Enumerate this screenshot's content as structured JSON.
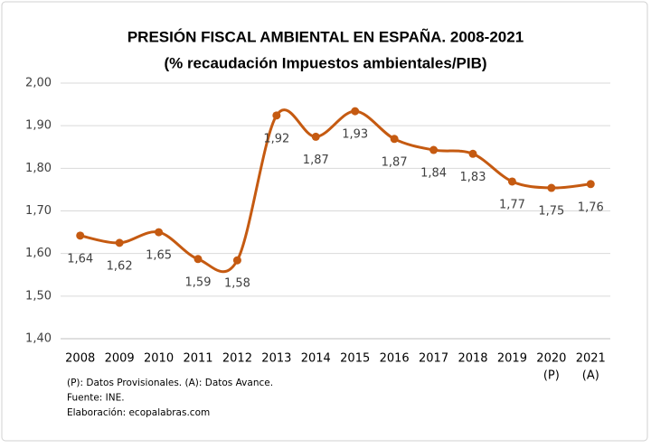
{
  "chart_data": {
    "type": "line",
    "title": "PRESIÓN FISCAL AMBIENTAL EN ESPAÑA. 2008-2021",
    "subtitle": "(% recaudación Impuestos ambientales/PIB)",
    "categories": [
      "2008",
      "2009",
      "2010",
      "2011",
      "2012",
      "2013",
      "2014",
      "2015",
      "2016",
      "2017",
      "2018",
      "2019",
      "2020",
      "2021"
    ],
    "category_notes": [
      null,
      null,
      null,
      null,
      null,
      null,
      null,
      null,
      null,
      null,
      null,
      null,
      "(P)",
      "(A)"
    ],
    "series": [
      {
        "name": "Presión fiscal ambiental",
        "color": "#c55a11",
        "values": [
          1.642,
          1.625,
          1.65,
          1.587,
          1.584,
          1.924,
          1.874,
          1.934,
          1.869,
          1.843,
          1.834,
          1.769,
          1.754,
          1.763
        ],
        "value_labels": [
          "1,64",
          "1,62",
          "1,65",
          "1,59",
          "1,58",
          "1,92",
          "1,87",
          "1,93",
          "1,87",
          "1,84",
          "1,83",
          "1,77",
          "1,75",
          "1,76"
        ]
      }
    ],
    "ylim": [
      1.4,
      2.0
    ],
    "yticks": [
      {
        "value": 1.4,
        "label": "1,40"
      },
      {
        "value": 1.5,
        "label": "1,50"
      },
      {
        "value": 1.6,
        "label": "1,60"
      },
      {
        "value": 1.7,
        "label": "1,70"
      },
      {
        "value": 1.8,
        "label": "1,80"
      },
      {
        "value": 1.9,
        "label": "1,90"
      },
      {
        "value": 2.0,
        "label": "2,00"
      }
    ],
    "grid": true,
    "notes": [
      "(P): Datos Provisionales. (A): Datos Avance.",
      "Fuente: INE.",
      "Elaboración: ecopalabras.com"
    ]
  }
}
